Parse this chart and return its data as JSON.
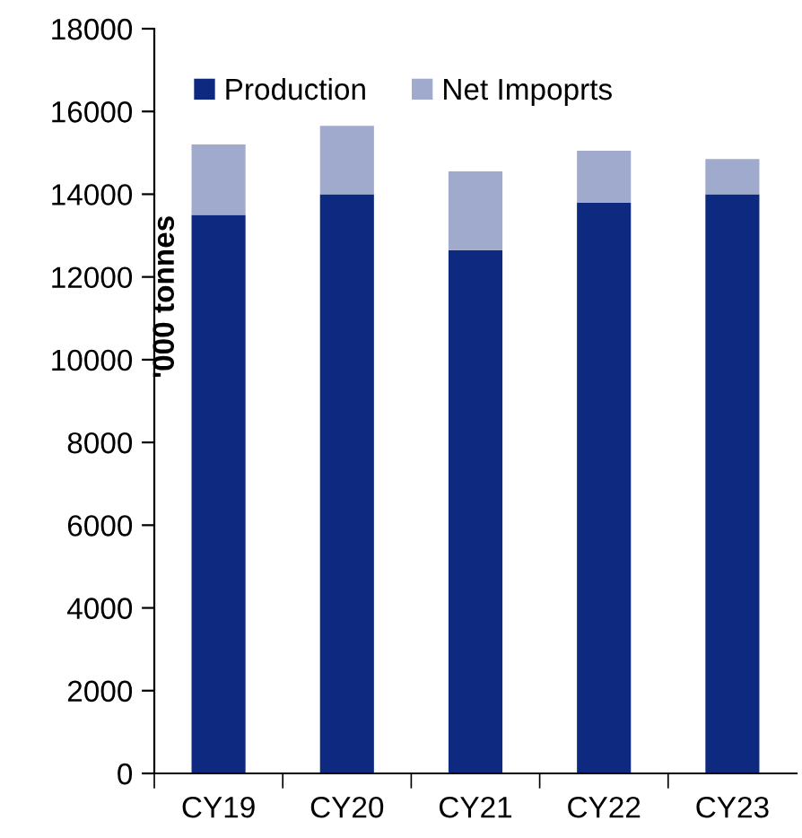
{
  "chart_data": {
    "type": "bar",
    "stacked": true,
    "ylabel": "'000 tonnes",
    "categories": [
      "CY19",
      "CY20",
      "CY21",
      "CY22",
      "CY23"
    ],
    "series": [
      {
        "name": "Production",
        "color": "#0d2a80",
        "values": [
          13500,
          14000,
          12650,
          13800,
          14000
        ]
      },
      {
        "name": "Net Impoprts",
        "color": "#a0aacc",
        "values": [
          1700,
          1650,
          1900,
          1250,
          850
        ]
      }
    ],
    "ylim": [
      0,
      18000
    ],
    "yticks": [
      0,
      2000,
      4000,
      6000,
      8000,
      10000,
      12000,
      14000,
      16000,
      18000
    ],
    "grid": false,
    "legend": "top left"
  }
}
